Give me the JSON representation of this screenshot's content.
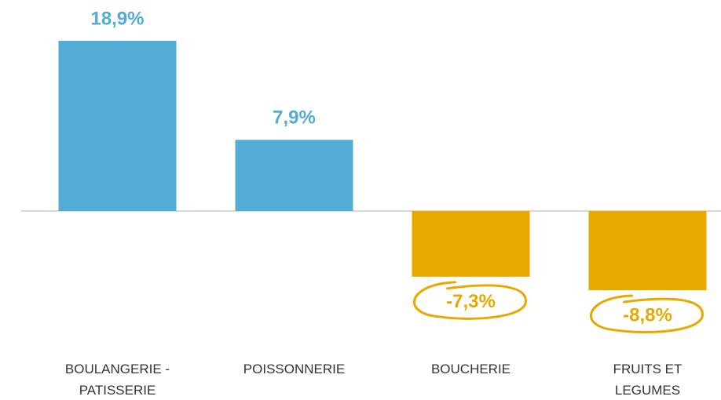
{
  "chart_data": {
    "type": "bar",
    "categories": [
      "BOULANGERIE - PATISSERIE",
      "POISSONNERIE",
      "BOUCHERIE",
      "FRUITS ET LEGUMES"
    ],
    "values": [
      18.9,
      7.9,
      -7.3,
      -8.8
    ],
    "value_labels": [
      "18,9%",
      "7,9%",
      "-7,3%",
      "-8,8%"
    ],
    "colors": [
      "#52acd6",
      "#52acd6",
      "#e8a800",
      "#e8a800"
    ]
  }
}
